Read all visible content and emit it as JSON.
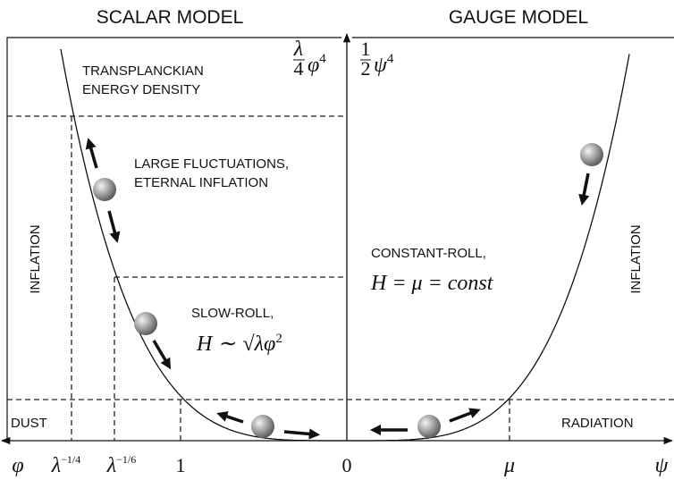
{
  "header": {
    "left_title": "SCALAR MODEL",
    "right_title": "GAUGE MODEL"
  },
  "regions": {
    "transplanckian": [
      "TRANSPLANCKIAN",
      "ENERGY DENSITY"
    ],
    "fluctuations": [
      "LARGE FLUCTUATIONS,",
      "ETERNAL INFLATION"
    ],
    "inflation_left": "INFLATION",
    "slow_roll": "SLOW-ROLL,",
    "slow_roll_formula": {
      "lhs": "H ∼ ",
      "root": "λ",
      "rest": "φ",
      "sup": "2"
    },
    "dust": "DUST",
    "constant_roll": "CONSTANT-ROLL,",
    "constant_roll_formula": "H = μ = const",
    "inflation_right": "INFLATION",
    "radiation": "RADIATION"
  },
  "potentials": {
    "scalar": {
      "num": "λ",
      "den": "4",
      "var": "φ",
      "sup": "4"
    },
    "gauge": {
      "num": "1",
      "den": "2",
      "var": "ψ",
      "sup": "4"
    }
  },
  "axis_labels": {
    "phi": "φ",
    "lambda_quarter": {
      "base": "λ",
      "sup": "−1/4"
    },
    "lambda_sixth": {
      "base": "λ",
      "sup": "−1/6"
    },
    "one": "1",
    "zero": "0",
    "mu": "μ",
    "psi": "ψ"
  }
}
